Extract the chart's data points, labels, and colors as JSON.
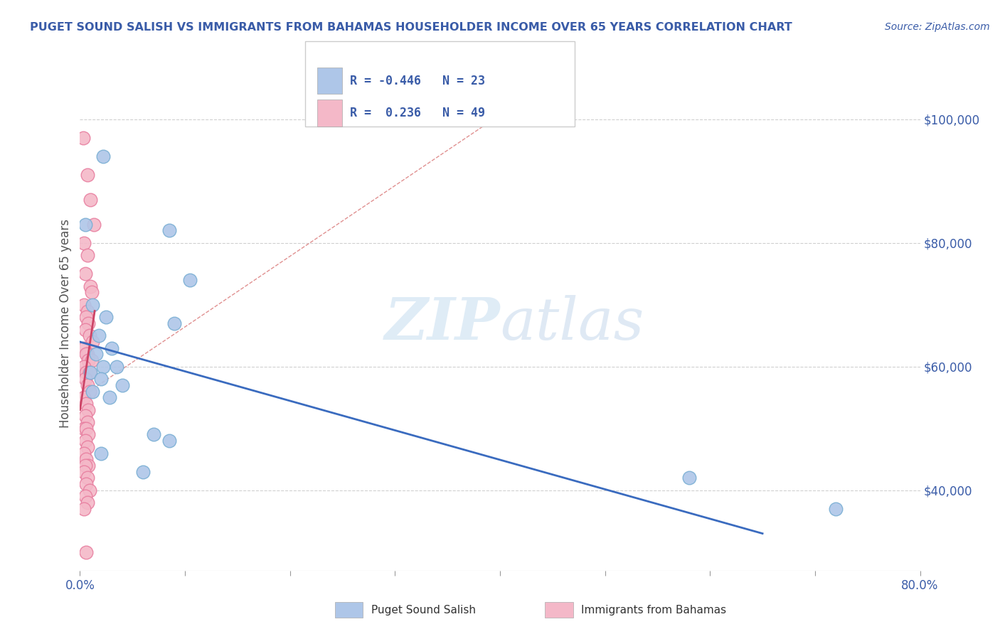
{
  "title": "PUGET SOUND SALISH VS IMMIGRANTS FROM BAHAMAS HOUSEHOLDER INCOME OVER 65 YEARS CORRELATION CHART",
  "source": "Source: ZipAtlas.com",
  "ylabel": "Householder Income Over 65 years",
  "xlim": [
    0.0,
    0.8
  ],
  "ylim": [
    27000,
    107000
  ],
  "yticks": [
    40000,
    60000,
    80000,
    100000
  ],
  "ytick_labels": [
    "$40,000",
    "$60,000",
    "$80,000",
    "$100,000"
  ],
  "xtick_positions": [
    0.0,
    0.1,
    0.2,
    0.3,
    0.4,
    0.5,
    0.6,
    0.7,
    0.8
  ],
  "watermark": "ZIPatlas",
  "legend_items": [
    {
      "label": "Puget Sound Salish",
      "color": "#aec6e8",
      "R": -0.446,
      "N": 23
    },
    {
      "label": "Immigrants from Bahamas",
      "color": "#f4b8c8",
      "R": 0.236,
      "N": 49
    }
  ],
  "blue_scatter": [
    [
      0.022,
      94000
    ],
    [
      0.005,
      83000
    ],
    [
      0.085,
      82000
    ],
    [
      0.105,
      74000
    ],
    [
      0.012,
      70000
    ],
    [
      0.025,
      68000
    ],
    [
      0.09,
      67000
    ],
    [
      0.018,
      65000
    ],
    [
      0.03,
      63000
    ],
    [
      0.015,
      62000
    ],
    [
      0.022,
      60000
    ],
    [
      0.035,
      60000
    ],
    [
      0.01,
      59000
    ],
    [
      0.02,
      58000
    ],
    [
      0.04,
      57000
    ],
    [
      0.012,
      56000
    ],
    [
      0.028,
      55000
    ],
    [
      0.07,
      49000
    ],
    [
      0.085,
      48000
    ],
    [
      0.02,
      46000
    ],
    [
      0.06,
      43000
    ],
    [
      0.58,
      42000
    ],
    [
      0.72,
      37000
    ]
  ],
  "pink_scatter": [
    [
      0.003,
      97000
    ],
    [
      0.007,
      91000
    ],
    [
      0.01,
      87000
    ],
    [
      0.013,
      83000
    ],
    [
      0.004,
      80000
    ],
    [
      0.007,
      78000
    ],
    [
      0.005,
      75000
    ],
    [
      0.01,
      73000
    ],
    [
      0.011,
      72000
    ],
    [
      0.004,
      70000
    ],
    [
      0.007,
      69000
    ],
    [
      0.006,
      68000
    ],
    [
      0.008,
      67000
    ],
    [
      0.005,
      66000
    ],
    [
      0.009,
      65000
    ],
    [
      0.012,
      64000
    ],
    [
      0.004,
      63000
    ],
    [
      0.007,
      62000
    ],
    [
      0.006,
      62000
    ],
    [
      0.008,
      61000
    ],
    [
      0.011,
      61000
    ],
    [
      0.004,
      60000
    ],
    [
      0.006,
      59000
    ],
    [
      0.009,
      59000
    ],
    [
      0.005,
      58000
    ],
    [
      0.007,
      57000
    ],
    [
      0.009,
      56000
    ],
    [
      0.004,
      55000
    ],
    [
      0.006,
      54000
    ],
    [
      0.008,
      53000
    ],
    [
      0.005,
      52000
    ],
    [
      0.007,
      51000
    ],
    [
      0.004,
      50000
    ],
    [
      0.006,
      50000
    ],
    [
      0.008,
      49000
    ],
    [
      0.005,
      48000
    ],
    [
      0.007,
      47000
    ],
    [
      0.004,
      46000
    ],
    [
      0.006,
      45000
    ],
    [
      0.008,
      44000
    ],
    [
      0.005,
      44000
    ],
    [
      0.004,
      43000
    ],
    [
      0.007,
      42000
    ],
    [
      0.006,
      41000
    ],
    [
      0.009,
      40000
    ],
    [
      0.005,
      39000
    ],
    [
      0.007,
      38000
    ],
    [
      0.004,
      37000
    ],
    [
      0.006,
      30000
    ]
  ],
  "blue_line_x": [
    0.0,
    0.65
  ],
  "blue_line_y": [
    64000,
    33000
  ],
  "pink_line_x": [
    0.0,
    0.014
  ],
  "pink_line_y": [
    53000,
    69000
  ],
  "diag_line_x": [
    0.0,
    0.42
  ],
  "diag_line_y": [
    55000,
    103000
  ],
  "title_color": "#3a5ca8",
  "source_color": "#3a5ca8",
  "axis_color": "#3a5ca8",
  "ytick_color": "#3a5ca8",
  "xtick_color": "#3a5ca8",
  "grid_color": "#d0d0d0",
  "blue_scatter_color": "#aec6e8",
  "blue_scatter_edge": "#7bafd4",
  "pink_scatter_color": "#f4b8c8",
  "pink_scatter_edge": "#e87fa0",
  "blue_line_color": "#3a6bbf",
  "pink_line_color": "#cc4466",
  "diag_line_color": "#e09090"
}
